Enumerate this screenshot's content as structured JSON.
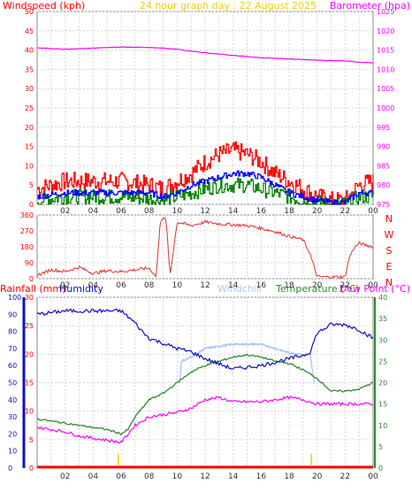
{
  "header": {
    "left": "Windspeed (kph)",
    "center": "24 hour graph day : 22 August 2025",
    "right": "Barometer (hpa)"
  },
  "mid_labels": {
    "rainfall": "Rainfall (mm)",
    "humidity": "Humidity",
    "windchill": "Windchill",
    "temperature": "Temperature (°C)",
    "dewpoint": "Dew Point (°C)"
  },
  "colors": {
    "background": "#ffffff",
    "axes_text": "#ff0000",
    "wind_red": "#ff0000",
    "wind_blue": "#0000ff",
    "wind_green": "#008000",
    "barometer": "#ff00ff",
    "direction": "#dd3333",
    "humidity": "#1010c0",
    "windchill": "#a9c7f5",
    "temperature": "#2e8b2e",
    "dewpoint": "#ff00ff",
    "rain": "#ff0000",
    "title_yellow": "#f0d000"
  },
  "x_ticks": [
    "02",
    "04",
    "06",
    "08",
    "10",
    "12",
    "14",
    "16",
    "18",
    "20",
    "22",
    "00"
  ],
  "chart_data": [
    {
      "type": "line",
      "name": "wind-barometer",
      "x_range": [
        0,
        24
      ],
      "y_left": {
        "label": "Windspeed (kph)",
        "ticks": [
          "0",
          "5",
          "10",
          "15",
          "20",
          "25",
          "30",
          "35",
          "40",
          "45",
          "50"
        ],
        "ylim": [
          0,
          50
        ]
      },
      "y_right": {
        "label": "Barometer (hpa)",
        "ticks": [
          "975",
          "980",
          "985",
          "990",
          "995",
          "1000",
          "1005",
          "1010",
          "1015",
          "1020",
          "1025"
        ],
        "ylim": [
          975,
          1025
        ]
      },
      "grid": true,
      "barometer": {
        "x": [
          0,
          2,
          4,
          6,
          8,
          10,
          12,
          14,
          16,
          18,
          20,
          22,
          24
        ],
        "y": [
          1015.6,
          1015.2,
          1015.5,
          1015.8,
          1015.7,
          1015.2,
          1014.3,
          1013.6,
          1013.0,
          1012.7,
          1012.4,
          1012.2,
          1011.6
        ]
      },
      "gust_envelope": {
        "x": [
          0,
          2,
          4,
          6,
          8,
          9,
          10,
          11,
          12,
          13,
          14,
          15,
          16,
          17,
          18,
          19,
          20,
          21,
          22,
          23,
          24
        ],
        "y": [
          4,
          6,
          6,
          6,
          5,
          4,
          6,
          8,
          11,
          13,
          14,
          13,
          11,
          8,
          6,
          4,
          2,
          1,
          1,
          5,
          6
        ]
      },
      "avg_envelope": {
        "x": [
          0,
          2,
          4,
          6,
          8,
          9,
          10,
          11,
          12,
          13,
          14,
          15,
          16,
          17,
          18,
          19,
          20,
          21,
          22,
          23,
          24
        ],
        "y": [
          2,
          3,
          3,
          3,
          3,
          2,
          3,
          5,
          6,
          7,
          8,
          8,
          7,
          5,
          3,
          2,
          1,
          0.5,
          0.5,
          3,
          3
        ]
      },
      "low_envelope": {
        "x": [
          0,
          2,
          4,
          6,
          8,
          9,
          10,
          11,
          12,
          13,
          14,
          15,
          16,
          17,
          18,
          19,
          20,
          21,
          22,
          23,
          24
        ],
        "y": [
          1,
          2,
          2,
          2,
          1.5,
          1,
          2,
          3,
          4,
          5,
          5,
          5,
          4,
          3,
          2,
          1,
          0.5,
          0,
          0,
          2,
          2
        ]
      }
    },
    {
      "type": "line",
      "name": "wind-direction",
      "y_left": {
        "ticks": [
          "0",
          "90",
          "180",
          "270",
          "360"
        ],
        "ylim": [
          0,
          360
        ]
      },
      "y_right_labels": [
        "N",
        "W",
        "S",
        "E",
        "N"
      ],
      "x": [
        0,
        1,
        2,
        3,
        4,
        5,
        6,
        7,
        8,
        8.5,
        8.8,
        9.2,
        9.5,
        10,
        11,
        12,
        13,
        14,
        15,
        16,
        17,
        18,
        19,
        19.5,
        20,
        21,
        22,
        22.3,
        22.6,
        23,
        24
      ],
      "y": [
        20,
        50,
        40,
        65,
        30,
        45,
        40,
        50,
        60,
        10,
        330,
        340,
        20,
        320,
        300,
        320,
        310,
        305,
        300,
        285,
        265,
        240,
        220,
        140,
        10,
        10,
        10,
        120,
        170,
        200,
        180
      ]
    },
    {
      "type": "line",
      "name": "temperature-humidity",
      "y_humidity": {
        "label": "Humidity",
        "ticks": [
          "0",
          "10",
          "20",
          "30",
          "40",
          "50",
          "60",
          "70",
          "80",
          "90",
          "100"
        ],
        "ylim": [
          0,
          100
        ]
      },
      "y_rain": {
        "label": "Rainfall (mm)",
        "ticks": [
          "0",
          "5",
          "10",
          "15",
          "20",
          "25",
          "30"
        ],
        "ylim": [
          0,
          30
        ]
      },
      "y_temp": {
        "label": "Temperature (°C)",
        "ticks": [
          "0",
          "5",
          "10",
          "15",
          "20",
          "25",
          "30",
          "35",
          "40"
        ],
        "ylim": [
          0,
          40
        ]
      },
      "humidity": {
        "x": [
          0,
          1,
          2,
          3,
          4,
          5,
          6,
          7,
          7.5,
          8,
          9,
          10,
          11,
          12,
          13,
          14,
          15,
          16,
          17,
          18,
          19,
          19.5,
          20,
          21,
          22,
          23,
          24
        ],
        "y": [
          90,
          91,
          92,
          92,
          92,
          92,
          92,
          85,
          80,
          76,
          73,
          70,
          68,
          64,
          61,
          58,
          59,
          60,
          62,
          64,
          66,
          68,
          79,
          84,
          84,
          81,
          76
        ]
      },
      "windchill": {
        "x": [
          10.2,
          10.3,
          11,
          12,
          13,
          14,
          15,
          16,
          17,
          18,
          19,
          19.5,
          19.8
        ],
        "y": [
          20,
          25,
          26,
          28,
          28.5,
          29,
          29,
          29,
          28,
          27,
          26.5,
          26.5,
          20
        ]
      },
      "temperature": {
        "x": [
          0,
          1,
          2,
          3,
          4,
          5,
          6,
          6.5,
          7,
          8,
          9,
          10,
          11,
          12,
          13,
          14,
          15,
          16,
          17,
          18,
          19,
          20,
          21,
          22,
          23,
          24
        ],
        "y": [
          11.5,
          11,
          10.5,
          10,
          9.5,
          9,
          8,
          9,
          12,
          16,
          17.5,
          20,
          22.5,
          24,
          25,
          26,
          26.5,
          26,
          25,
          24.5,
          23,
          21,
          18,
          18,
          18.5,
          20
        ]
      },
      "dewpoint": {
        "x": [
          0,
          1,
          2,
          3,
          4,
          5,
          6,
          7,
          8,
          9,
          10,
          11,
          12,
          13,
          14,
          15,
          16,
          17,
          18,
          19,
          20,
          21,
          22,
          23,
          24
        ],
        "y": [
          9.5,
          9,
          8.5,
          7.5,
          7,
          6.5,
          6,
          10,
          12,
          12.5,
          13,
          14,
          16,
          16.5,
          15.5,
          15.5,
          15.5,
          16,
          16.5,
          16,
          15,
          15,
          15,
          15,
          15
        ]
      },
      "rain_markers": {
        "x": [
          5.8,
          19.6
        ]
      }
    }
  ]
}
